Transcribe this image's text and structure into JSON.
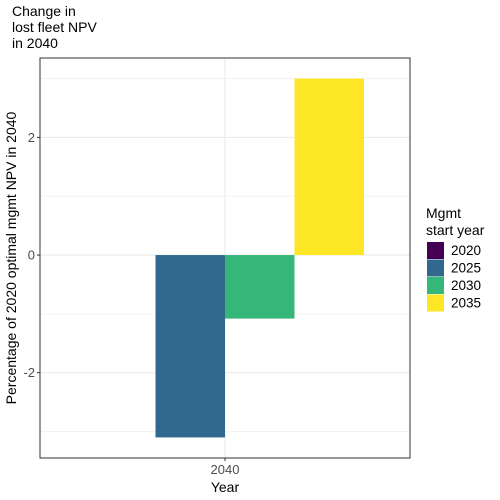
{
  "chart_data": {
    "type": "bar",
    "title_lines": [
      "Change in",
      "lost fleet NPV",
      "in 2040"
    ],
    "xlabel": "Year",
    "ylabel": "Percentage of 2020 optimal mgmt NPV in 2040",
    "categories": [
      "2040"
    ],
    "ylim": [
      -3.45,
      3.35
    ],
    "yticks": [
      -2,
      0,
      2
    ],
    "ytick_labels": [
      "-2",
      "0",
      "2"
    ],
    "grid": true,
    "legend_position": "right",
    "legend_title_lines": [
      "Mgmt",
      "start year"
    ],
    "series": [
      {
        "name": "2020",
        "values": [
          0
        ],
        "color": "#440154"
      },
      {
        "name": "2025",
        "values": [
          -3.1
        ],
        "color": "#31688E"
      },
      {
        "name": "2030",
        "values": [
          -1.08
        ],
        "color": "#35B779"
      },
      {
        "name": "2035",
        "values": [
          3.0
        ],
        "color": "#FDE725"
      }
    ]
  }
}
